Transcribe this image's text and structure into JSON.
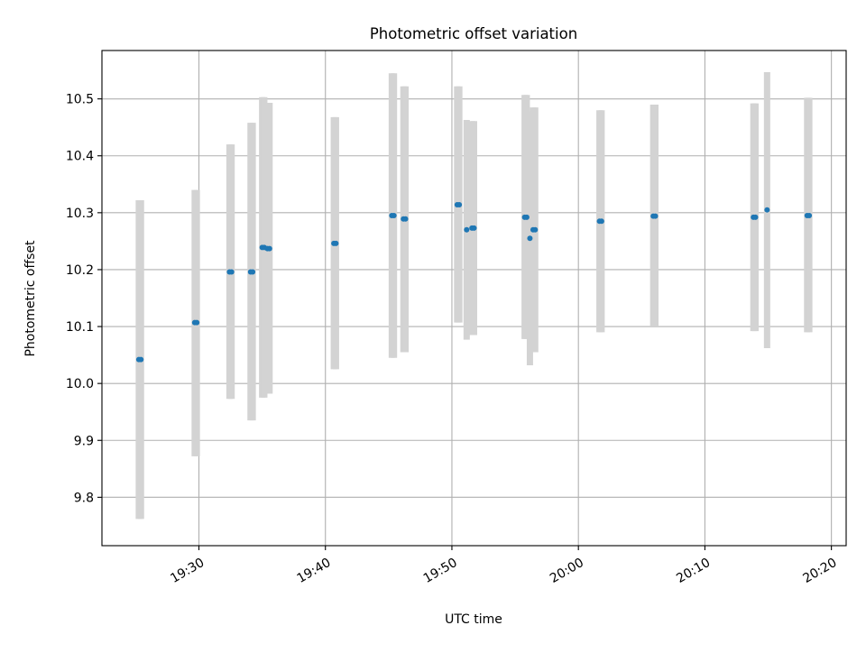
{
  "chart_data": {
    "type": "scatter",
    "title": "Photometric offset variation",
    "xlabel": "UTC time",
    "ylabel": "Photometric offset",
    "x_axis": {
      "type": "time",
      "range": [
        "19:22:20",
        "20:21:10"
      ],
      "ticks": [
        "19:30",
        "19:40",
        "19:50",
        "20:00",
        "20:10",
        "20:20"
      ]
    },
    "y_axis": {
      "range": [
        9.715,
        10.585
      ],
      "ticks": [
        "9.8",
        "9.9",
        "10.0",
        "10.1",
        "10.2",
        "10.3",
        "10.4",
        "10.5"
      ]
    },
    "grid": true,
    "colors": {
      "points": "#1f77b4",
      "error_bars": "#d3d3d3",
      "grid": "#b0b0b0"
    },
    "series": [
      {
        "points": [
          {
            "t": "19:25:15",
            "y": 10.042,
            "ylow": 9.762,
            "yhigh": 10.322
          },
          {
            "t": "19:25:25",
            "y": 10.042,
            "ylow": 9.762,
            "yhigh": 10.322
          },
          {
            "t": "19:29:40",
            "y": 10.107,
            "ylow": 9.872,
            "yhigh": 10.34
          },
          {
            "t": "19:29:50",
            "y": 10.107,
            "ylow": 9.872,
            "yhigh": 10.34
          },
          {
            "t": "19:32:25",
            "y": 10.196,
            "ylow": 9.973,
            "yhigh": 10.42
          },
          {
            "t": "19:32:35",
            "y": 10.196,
            "ylow": 9.973,
            "yhigh": 10.42
          },
          {
            "t": "19:34:05",
            "y": 10.196,
            "ylow": 9.935,
            "yhigh": 10.458
          },
          {
            "t": "19:34:15",
            "y": 10.196,
            "ylow": 9.935,
            "yhigh": 10.458
          },
          {
            "t": "19:35:00",
            "y": 10.239,
            "ylow": 9.975,
            "yhigh": 10.503
          },
          {
            "t": "19:35:10",
            "y": 10.239,
            "ylow": 9.975,
            "yhigh": 10.503
          },
          {
            "t": "19:35:25",
            "y": 10.237,
            "ylow": 9.982,
            "yhigh": 10.493
          },
          {
            "t": "19:35:35",
            "y": 10.237,
            "ylow": 9.982,
            "yhigh": 10.493
          },
          {
            "t": "19:40:40",
            "y": 10.246,
            "ylow": 10.025,
            "yhigh": 10.468
          },
          {
            "t": "19:40:50",
            "y": 10.246,
            "ylow": 10.025,
            "yhigh": 10.468
          },
          {
            "t": "19:45:15",
            "y": 10.295,
            "ylow": 10.045,
            "yhigh": 10.545
          },
          {
            "t": "19:45:25",
            "y": 10.295,
            "ylow": 10.045,
            "yhigh": 10.545
          },
          {
            "t": "19:46:10",
            "y": 10.289,
            "ylow": 10.055,
            "yhigh": 10.522
          },
          {
            "t": "19:46:20",
            "y": 10.289,
            "ylow": 10.055,
            "yhigh": 10.522
          },
          {
            "t": "19:50:25",
            "y": 10.314,
            "ylow": 10.107,
            "yhigh": 10.522
          },
          {
            "t": "19:50:35",
            "y": 10.314,
            "ylow": 10.107,
            "yhigh": 10.522
          },
          {
            "t": "19:51:10",
            "y": 10.27,
            "ylow": 10.077,
            "yhigh": 10.463
          },
          {
            "t": "19:51:35",
            "y": 10.273,
            "ylow": 10.085,
            "yhigh": 10.461
          },
          {
            "t": "19:51:45",
            "y": 10.273,
            "ylow": 10.085,
            "yhigh": 10.461
          },
          {
            "t": "19:55:45",
            "y": 10.292,
            "ylow": 10.078,
            "yhigh": 10.507
          },
          {
            "t": "19:55:55",
            "y": 10.292,
            "ylow": 10.078,
            "yhigh": 10.507
          },
          {
            "t": "19:56:10",
            "y": 10.255,
            "ylow": 10.032,
            "yhigh": 10.478
          },
          {
            "t": "19:56:25",
            "y": 10.27,
            "ylow": 10.055,
            "yhigh": 10.485
          },
          {
            "t": "19:56:35",
            "y": 10.27,
            "ylow": 10.055,
            "yhigh": 10.485
          },
          {
            "t": "20:01:40",
            "y": 10.285,
            "ylow": 10.09,
            "yhigh": 10.48
          },
          {
            "t": "20:01:50",
            "y": 10.285,
            "ylow": 10.09,
            "yhigh": 10.48
          },
          {
            "t": "20:05:55",
            "y": 10.294,
            "ylow": 10.1,
            "yhigh": 10.49
          },
          {
            "t": "20:06:05",
            "y": 10.294,
            "ylow": 10.1,
            "yhigh": 10.49
          },
          {
            "t": "20:13:50",
            "y": 10.292,
            "ylow": 10.092,
            "yhigh": 10.492
          },
          {
            "t": "20:14:00",
            "y": 10.292,
            "ylow": 10.092,
            "yhigh": 10.492
          },
          {
            "t": "20:14:55",
            "y": 10.305,
            "ylow": 10.062,
            "yhigh": 10.547
          },
          {
            "t": "20:18:05",
            "y": 10.295,
            "ylow": 10.09,
            "yhigh": 10.502
          },
          {
            "t": "20:18:15",
            "y": 10.295,
            "ylow": 10.09,
            "yhigh": 10.502
          }
        ]
      }
    ]
  }
}
